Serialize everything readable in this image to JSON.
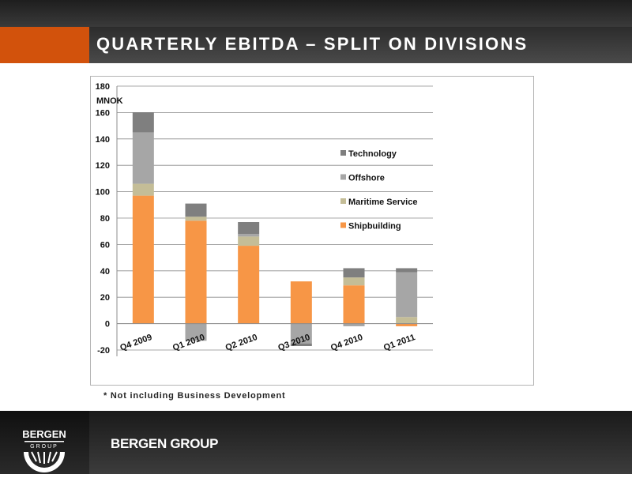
{
  "header": {
    "title": "QUARTERLY EBITDA – SPLIT ON DIVISIONS"
  },
  "footnote": "* Not including Business Development",
  "footer": {
    "brand": "BERGEN GROUP",
    "logo_word": "BERGEN",
    "logo_sub": "GROUP"
  },
  "colors": {
    "accent": "#d2520c",
    "shipbuilding": "#f79646",
    "maritime_service": "#c4bd97",
    "offshore": "#a6a6a6",
    "technology": "#7f7f7f"
  },
  "chart_data": {
    "type": "bar",
    "stacked": true,
    "title": "",
    "xlabel": "",
    "ylabel": "MNOK",
    "ylim": [
      -20,
      180
    ],
    "yticks": [
      -20,
      0,
      20,
      40,
      60,
      80,
      100,
      120,
      140,
      160,
      180
    ],
    "grid": true,
    "legend_position": "right",
    "categories": [
      "Q4 2009",
      "Q1 2010",
      "Q2 2010",
      "Q3 2010",
      "Q4 2010",
      "Q1 2011"
    ],
    "series": [
      {
        "name": "Shipbuilding",
        "color": "#f79646",
        "values": [
          97,
          78,
          59,
          32,
          29,
          -2
        ]
      },
      {
        "name": "Maritime Service",
        "color": "#c4bd97",
        "values": [
          9,
          3,
          7,
          0,
          6,
          5
        ]
      },
      {
        "name": "Offshore",
        "color": "#a6a6a6",
        "values": [
          39,
          -13,
          2,
          -15,
          -2,
          34
        ]
      },
      {
        "name": "Technology",
        "color": "#7f7f7f",
        "values": [
          15,
          10,
          9,
          -2,
          7,
          3
        ]
      }
    ],
    "legend_order": [
      "Technology",
      "Offshore",
      "Maritime Service",
      "Shipbuilding"
    ]
  }
}
